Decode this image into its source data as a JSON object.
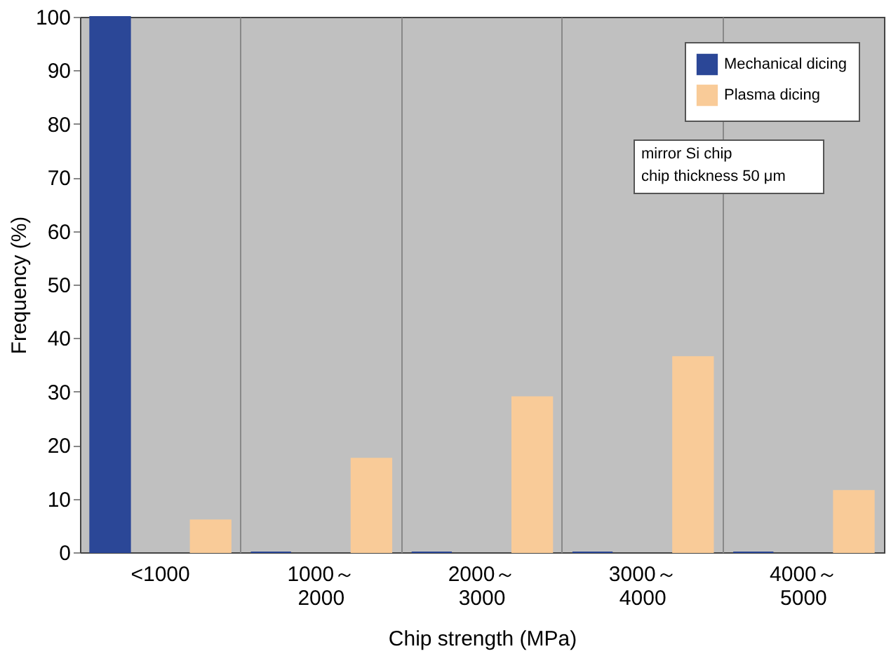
{
  "chart_data": {
    "type": "bar",
    "xlabel": "Chip strength (MPa)",
    "ylabel": "Frequency (%)",
    "categories": [
      "<1000",
      "1000～2000",
      "2000～3000",
      "3000～4000",
      "4000～5000"
    ],
    "series": [
      {
        "name": "Mechanical dicing",
        "color": "#2b4797",
        "values": [
          100,
          0,
          0,
          0,
          0
        ]
      },
      {
        "name": "Plasma dicing",
        "color": "#f9cb98",
        "values": [
          6,
          17.5,
          29,
          36.5,
          11.5
        ]
      }
    ],
    "ylim": [
      0,
      100
    ],
    "yticks": [
      0,
      10,
      20,
      30,
      40,
      50,
      60,
      70,
      80,
      90,
      100
    ],
    "grid": "x",
    "legend": "top right",
    "annotations": [
      "mirror Si chip",
      "chip thickness 50 μm"
    ]
  }
}
